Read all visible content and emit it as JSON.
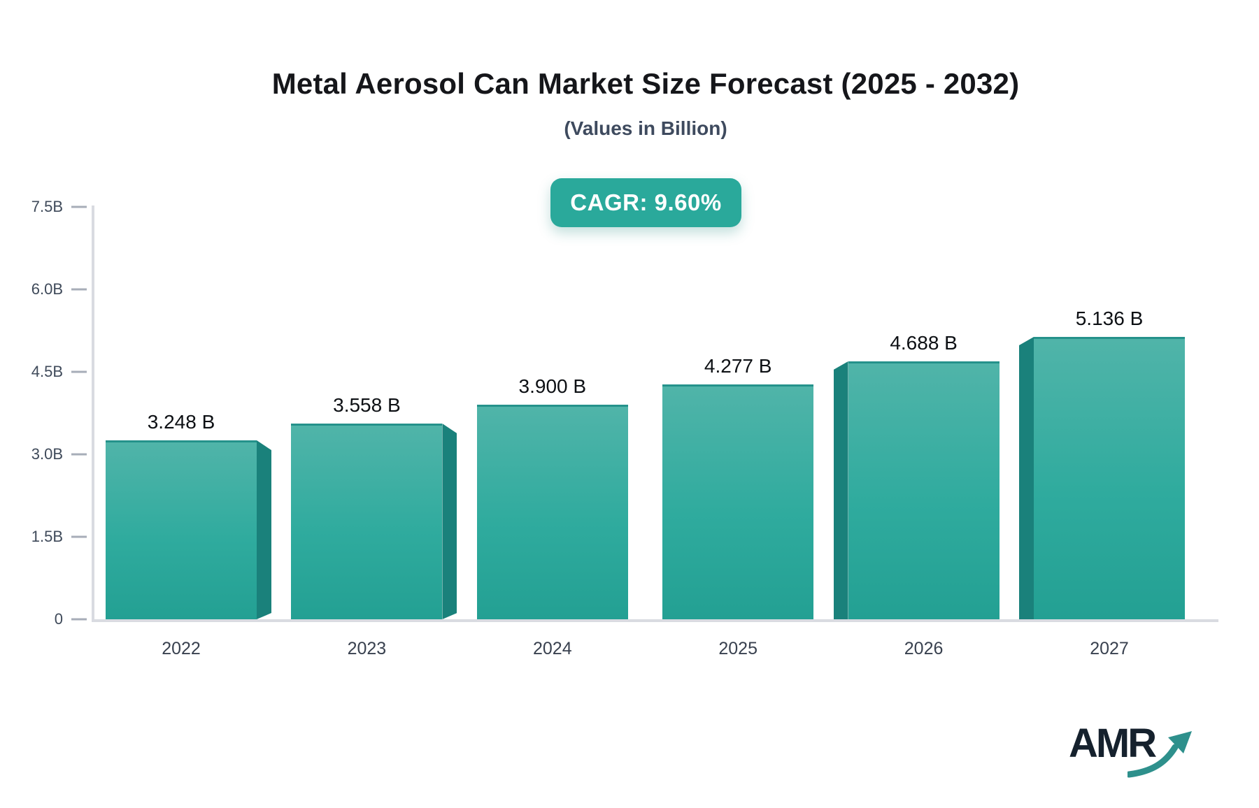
{
  "header": {
    "title": "Metal Aerosol Can Market Size Forecast (2025 - 2032)",
    "subtitle": "(Values in Billion)",
    "cagr_badge": "CAGR: 9.60%"
  },
  "chart_data": {
    "type": "bar",
    "title": "Metal Aerosol Can Market Size Forecast (2025 - 2032)",
    "subtitle": "(Values in Billion)",
    "cagr_percent": 9.6,
    "categories": [
      "2022",
      "2023",
      "2024",
      "2025",
      "2026",
      "2027"
    ],
    "values": [
      3.248,
      3.558,
      3.9,
      4.277,
      4.688,
      5.136
    ],
    "value_labels": [
      "3.248 B",
      "3.558 B",
      "3.900 B",
      "4.277 B",
      "4.688 B",
      "5.136 B"
    ],
    "y_ticks": [
      {
        "label": "7.5B",
        "value": 7.5
      },
      {
        "label": "6.0B",
        "value": 6.0
      },
      {
        "label": "4.5B",
        "value": 4.5
      },
      {
        "label": "3.0B",
        "value": 3.0
      },
      {
        "label": "1.5B",
        "value": 1.5
      },
      {
        "label": "0",
        "value": 0
      }
    ],
    "ylim": [
      0,
      7.5
    ],
    "grid": false,
    "legend": "none",
    "bevel_sides": [
      "right",
      "right",
      "none",
      "none",
      "left",
      "left"
    ]
  },
  "colors": {
    "bar_gradient_top": "#50b4a9",
    "bar_gradient_bottom": "#23a093",
    "bar_top_edge": "#25928b",
    "bar_bevel": "#1a817b",
    "badge_bg": "#2aa99b",
    "axis_line": "#d9dbe1",
    "tick_dash": "#a7adb8",
    "tick_text": "#3f4a5a",
    "category_text": "#39414f",
    "logo_text_color": "#15212d",
    "logo_arrow_color": "#2e908c"
  },
  "logo": {
    "text": "AMR"
  }
}
